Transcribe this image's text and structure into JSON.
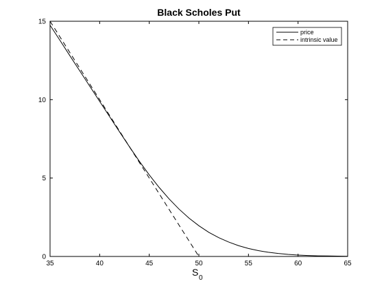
{
  "chart_data": {
    "type": "line",
    "title": "Black Scholes Put",
    "xlabel_main": "S",
    "xlabel_sub": "0",
    "ylabel": "",
    "xlim": [
      35,
      65
    ],
    "ylim": [
      0,
      15
    ],
    "xticks": [
      "35",
      "40",
      "45",
      "50",
      "55",
      "60",
      "65"
    ],
    "yticks": [
      "0",
      "5",
      "10",
      "15"
    ],
    "grid": false,
    "legend_position": "top-right",
    "series": [
      {
        "name": "price",
        "style": "solid",
        "x": [
          35,
          36,
          37,
          38,
          39,
          40,
          41,
          42,
          43,
          44,
          45,
          46,
          47,
          48,
          49,
          50,
          51,
          52,
          53,
          54,
          55,
          56,
          57,
          58,
          59,
          60,
          61,
          62,
          63,
          64,
          65
        ],
        "y": [
          14.75,
          13.78,
          12.8,
          11.83,
          10.86,
          9.89,
          8.92,
          7.95,
          7.0,
          6.07,
          5.2,
          4.4,
          3.67,
          3.02,
          2.45,
          1.96,
          1.54,
          1.2,
          0.92,
          0.69,
          0.51,
          0.37,
          0.27,
          0.19,
          0.13,
          0.09,
          0.06,
          0.04,
          0.03,
          0.02,
          0.01
        ]
      },
      {
        "name": "intrinsic value",
        "style": "dashed",
        "x": [
          35,
          50,
          65
        ],
        "y": [
          15,
          0,
          0
        ]
      }
    ]
  }
}
